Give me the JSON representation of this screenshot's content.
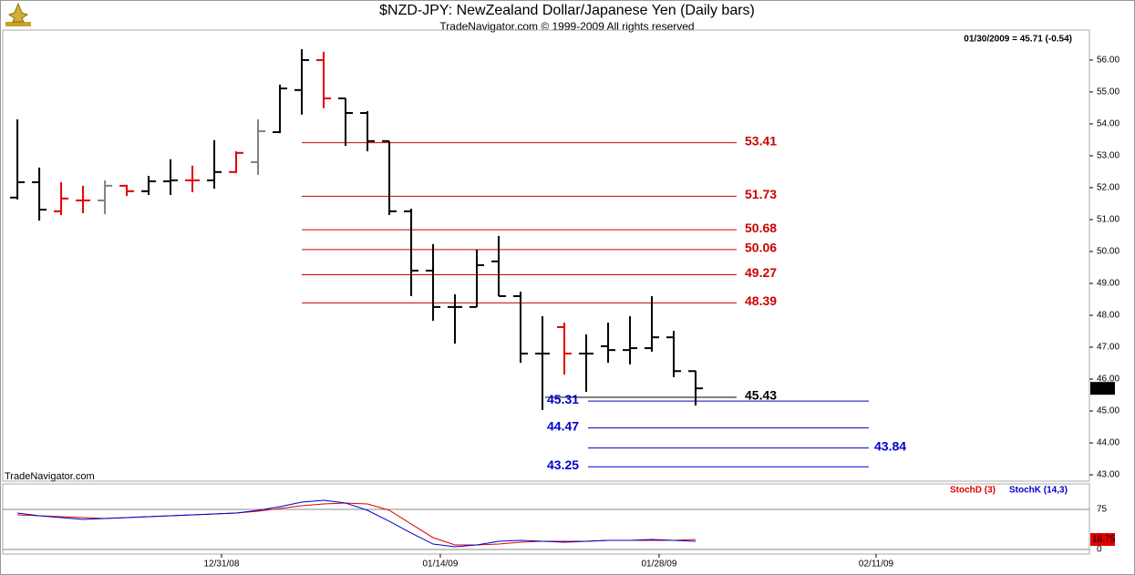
{
  "chart_data": {
    "type": "ohlc",
    "title": "$NZD-JPY:  NewZealand Dollar/Japanese Yen  (Daily bars)",
    "subtitle": "TradeNavigator.com © 1999-2009 All rights reserved",
    "status": "01/30/2009 = 45.71 (-0.54)",
    "watermark": "TradeNavigator.com",
    "x": [
      0,
      1,
      2,
      3,
      4,
      5,
      6,
      7,
      8,
      9,
      10,
      11,
      12,
      13,
      14,
      15,
      16,
      17,
      18,
      19,
      20,
      21,
      22,
      23,
      24,
      25,
      26,
      27,
      28,
      29,
      30,
      31
    ],
    "xlim": [
      -0.67,
      49
    ],
    "xticks": [
      {
        "value": 9.33,
        "label": "12/31/08"
      },
      {
        "value": 19.33,
        "label": "01/14/09"
      },
      {
        "value": 29.33,
        "label": "01/28/09"
      },
      {
        "value": 39.25,
        "label": "02/11/09"
      }
    ],
    "ohlc": {
      "open": [
        51.69,
        52.17,
        51.26,
        51.6,
        51.6,
        52.06,
        51.89,
        52.2,
        52.23,
        52.23,
        52.49,
        52.8,
        53.74,
        55.06,
        56.0,
        54.8,
        54.34,
        53.46,
        51.26,
        49.4,
        48.26,
        48.26,
        49.69,
        48.6,
        46.8,
        47.63,
        46.8,
        47.03,
        46.91,
        46.97,
        47.31,
        46.25
      ],
      "high": [
        54.14,
        52.63,
        52.17,
        52.06,
        52.23,
        52.09,
        52.37,
        52.89,
        52.69,
        53.49,
        53.14,
        54.14,
        55.23,
        56.34,
        56.26,
        54.8,
        54.4,
        53.46,
        51.34,
        50.23,
        48.66,
        50.06,
        50.49,
        48.74,
        47.97,
        47.77,
        47.4,
        47.77,
        47.97,
        48.6,
        47.51,
        46.26
      ],
      "low": [
        51.63,
        50.97,
        51.14,
        51.2,
        51.17,
        51.74,
        51.77,
        51.77,
        51.86,
        51.97,
        52.46,
        52.4,
        53.71,
        54.29,
        54.49,
        53.31,
        53.14,
        51.14,
        48.6,
        47.83,
        47.11,
        48.26,
        48.6,
        46.51,
        45.03,
        46.14,
        45.6,
        46.51,
        46.46,
        46.86,
        46.06,
        45.17
      ],
      "close": [
        52.17,
        51.31,
        51.66,
        51.6,
        52.06,
        51.89,
        52.2,
        52.23,
        52.23,
        52.49,
        53.09,
        53.77,
        55.11,
        56.0,
        54.8,
        54.34,
        53.46,
        51.26,
        49.4,
        48.26,
        48.26,
        49.57,
        48.6,
        46.8,
        46.8,
        46.8,
        46.8,
        46.91,
        46.97,
        47.31,
        46.25,
        45.71
      ]
    },
    "colors": [
      "#000000",
      "#000000",
      "#e00000",
      "#e00000",
      "#808080",
      "#e00000",
      "#000000",
      "#000000",
      "#e00000",
      "#000000",
      "#e00000",
      "#808080",
      "#000000",
      "#000000",
      "#e00000",
      "#000000",
      "#000000",
      "#000000",
      "#000000",
      "#000000",
      "#000000",
      "#000000",
      "#000000",
      "#000000",
      "#000000",
      "#e00000",
      "#000000",
      "#000000",
      "#000000",
      "#000000",
      "#000000",
      "#000000"
    ],
    "ylim": [
      42.83,
      56.94
    ],
    "yticks": [
      {
        "value": 43,
        "label": "43.00"
      },
      {
        "value": 44,
        "label": "44.00"
      },
      {
        "value": 45,
        "label": "45.00"
      },
      {
        "value": 46,
        "label": "46.00"
      },
      {
        "value": 47,
        "label": "47.00"
      },
      {
        "value": 48,
        "label": "48.00"
      },
      {
        "value": 49,
        "label": "49.00"
      },
      {
        "value": 50,
        "label": "50.00"
      },
      {
        "value": 51,
        "label": "51.00"
      },
      {
        "value": 52,
        "label": "52.00"
      },
      {
        "value": 53,
        "label": "53.00"
      },
      {
        "value": 54,
        "label": "54.00"
      },
      {
        "value": 55,
        "label": "55.00"
      },
      {
        "value": 56,
        "label": "56.00"
      }
    ],
    "levels": [
      {
        "value": 53.41,
        "color": "#cc0000"
      },
      {
        "value": 51.73,
        "color": "#cc0000"
      },
      {
        "value": 50.68,
        "color": "#cc0000"
      },
      {
        "value": 50.06,
        "color": "#cc0000"
      },
      {
        "value": 49.27,
        "color": "#cc0000"
      },
      {
        "value": 48.39,
        "color": "#cc0000"
      },
      {
        "value": 45.43,
        "color": "#000000"
      },
      {
        "value": 45.31,
        "color": "#0000cc"
      },
      {
        "value": 44.47,
        "color": "#0000cc"
      },
      {
        "value": 43.84,
        "color": "#0000cc"
      },
      {
        "value": 43.25,
        "color": "#0000cc"
      }
    ],
    "indicator": {
      "ylim": [
        -8.5,
        122.7
      ],
      "yticks": [
        0,
        75
      ],
      "series": [
        {
          "name": "StochD (3)",
          "color": "#e00000",
          "values": [
            64.8,
            63.1,
            61.4,
            59.7,
            58.0,
            59.7,
            61.4,
            63.1,
            64.8,
            66.5,
            68.2,
            71.6,
            76.7,
            81.8,
            85.2,
            86.9,
            85.2,
            73.3,
            47.7,
            22.2,
            8.5,
            8.5,
            10.2,
            13.6,
            15.3,
            15.3,
            15.3,
            17.0,
            17.0,
            17.0,
            17.0,
            18.75
          ]
        },
        {
          "name": "StochK (14,3)",
          "color": "#0000cc",
          "values": [
            68.2,
            63.1,
            59.7,
            56.2,
            58.0,
            59.7,
            61.4,
            63.1,
            64.8,
            66.5,
            68.2,
            73.3,
            80.1,
            88.6,
            92.0,
            86.9,
            73.3,
            52.8,
            30.7,
            10.2,
            5.1,
            8.5,
            15.3,
            17.0,
            15.3,
            13.6,
            15.3,
            17.0,
            17.0,
            18.7,
            17.0,
            15.3
          ]
        }
      ]
    }
  }
}
